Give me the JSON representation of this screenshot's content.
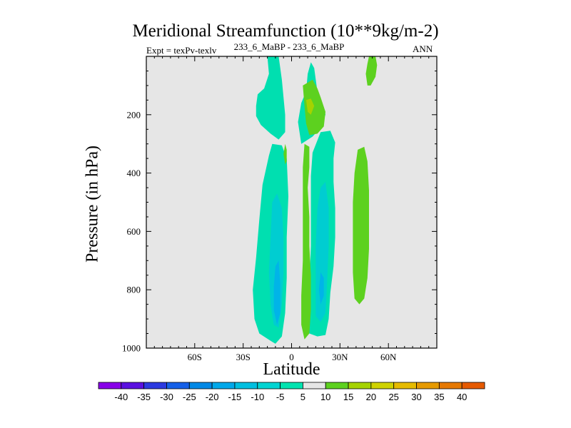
{
  "chart_data": {
    "type": "heatmap",
    "title": "Meridional Streamfunction (10**9kg/m-2)",
    "subtitle_left": "Expt = texPv-texlv",
    "subtitle_center": "233_6_MaBP - 233_6_MaBP",
    "subtitle_right": "ANN",
    "xlabel": "Latitude",
    "ylabel": "Pressure (in hPa)",
    "xlim": [
      -90,
      90
    ],
    "ylim": [
      1000,
      0
    ],
    "x_ticks": [
      {
        "value": -60,
        "label": "60S"
      },
      {
        "value": -30,
        "label": "30S"
      },
      {
        "value": 0,
        "label": "0"
      },
      {
        "value": 30,
        "label": "30N"
      },
      {
        "value": 60,
        "label": "60N"
      }
    ],
    "y_ticks": [
      {
        "value": 200,
        "label": "200"
      },
      {
        "value": 400,
        "label": "400"
      },
      {
        "value": 600,
        "label": "600"
      },
      {
        "value": 800,
        "label": "800"
      },
      {
        "value": 1000,
        "label": "1000"
      }
    ],
    "background_color": "#e6e6e6",
    "contour_regions": [
      {
        "level": "-10",
        "color": "#00dfb0",
        "points": [
          [
            -15,
            0
          ],
          [
            -8,
            0
          ],
          [
            -6,
            80
          ],
          [
            -4,
            200
          ],
          [
            -4,
            260
          ],
          [
            -8,
            285
          ],
          [
            -13,
            265
          ],
          [
            -19,
            235
          ],
          [
            -22,
            205
          ],
          [
            -22,
            170
          ],
          [
            -21,
            130
          ],
          [
            -17,
            110
          ],
          [
            -14,
            60
          ]
        ]
      },
      {
        "level": "-10",
        "color": "#00dfb0",
        "points": [
          [
            12,
            20
          ],
          [
            14,
            40
          ],
          [
            15,
            80
          ],
          [
            16,
            120
          ],
          [
            18,
            150
          ],
          [
            20,
            175
          ],
          [
            21,
            200
          ],
          [
            18,
            245
          ],
          [
            13,
            275
          ],
          [
            6,
            300
          ],
          [
            4,
            225
          ],
          [
            6,
            160
          ],
          [
            9,
            120
          ],
          [
            10,
            60
          ]
        ]
      },
      {
        "level": "-10",
        "color": "#00dfb0",
        "points": [
          [
            -12,
            300
          ],
          [
            -6,
            305
          ],
          [
            -3,
            350
          ],
          [
            -2,
            480
          ],
          [
            -3,
            620
          ],
          [
            -3,
            760
          ],
          [
            -4,
            880
          ],
          [
            -6,
            960
          ],
          [
            -10,
            985
          ],
          [
            -13,
            975
          ],
          [
            -20,
            950
          ],
          [
            -23,
            900
          ],
          [
            -24,
            800
          ],
          [
            -22,
            690
          ],
          [
            -20,
            560
          ],
          [
            -18,
            440
          ],
          [
            -14,
            340
          ]
        ]
      },
      {
        "level": "-10",
        "color": "#00dfb0",
        "points": [
          [
            18,
            260
          ],
          [
            24,
            255
          ],
          [
            27,
            295
          ],
          [
            26,
            350
          ],
          [
            26,
            430
          ],
          [
            27,
            520
          ],
          [
            27,
            620
          ],
          [
            26,
            720
          ],
          [
            24,
            810
          ],
          [
            23,
            900
          ],
          [
            21,
            955
          ],
          [
            16,
            960
          ],
          [
            11,
            950
          ],
          [
            10,
            880
          ],
          [
            11,
            780
          ],
          [
            12,
            650
          ],
          [
            12,
            520
          ],
          [
            12,
            410
          ],
          [
            13,
            330
          ]
        ]
      },
      {
        "level": "-15",
        "color": "#00cdd1",
        "points": [
          [
            -12,
            500
          ],
          [
            -9,
            470
          ],
          [
            -6,
            520
          ],
          [
            -5,
            620
          ],
          [
            -5,
            740
          ],
          [
            -6,
            850
          ],
          [
            -8,
            930
          ],
          [
            -11,
            920
          ],
          [
            -13,
            850
          ],
          [
            -14,
            740
          ],
          [
            -13,
            620
          ]
        ]
      },
      {
        "level": "-15",
        "color": "#00cdd1",
        "points": [
          [
            18,
            450
          ],
          [
            21,
            430
          ],
          [
            23,
            520
          ],
          [
            23,
            650
          ],
          [
            22,
            780
          ],
          [
            21,
            880
          ],
          [
            18,
            910
          ],
          [
            15,
            890
          ],
          [
            15,
            800
          ],
          [
            15,
            650
          ],
          [
            16,
            520
          ]
        ]
      },
      {
        "level": "-20",
        "color": "#00b4e8",
        "points": [
          [
            -10,
            720
          ],
          [
            -8,
            700
          ],
          [
            -7,
            780
          ],
          [
            -7,
            880
          ],
          [
            -9,
            920
          ],
          [
            -11,
            870
          ],
          [
            -11,
            790
          ]
        ]
      },
      {
        "level": "-20",
        "color": "#00b4e8",
        "points": [
          [
            18,
            740
          ],
          [
            20,
            760
          ],
          [
            20,
            820
          ],
          [
            18,
            850
          ],
          [
            17,
            800
          ]
        ]
      },
      {
        "level": "5",
        "color": "#5dd11f",
        "points": [
          [
            7,
            100
          ],
          [
            13,
            80
          ],
          [
            16,
            110
          ],
          [
            18,
            140
          ],
          [
            21,
            190
          ],
          [
            20,
            240
          ],
          [
            16,
            265
          ],
          [
            11,
            270
          ],
          [
            9,
            230
          ],
          [
            8,
            170
          ]
        ]
      },
      {
        "level": "10",
        "color": "#a5d300",
        "points": [
          [
            9,
            150
          ],
          [
            12,
            145
          ],
          [
            14,
            170
          ],
          [
            12,
            200
          ],
          [
            10,
            190
          ]
        ]
      },
      {
        "level": "5",
        "color": "#5dd11f",
        "points": [
          [
            8,
            300
          ],
          [
            11,
            310
          ],
          [
            11,
            380
          ],
          [
            10,
            450
          ],
          [
            11,
            550
          ],
          [
            11,
            650
          ],
          [
            12,
            750
          ],
          [
            12,
            870
          ],
          [
            11,
            950
          ],
          [
            8,
            970
          ],
          [
            6,
            920
          ],
          [
            6,
            820
          ],
          [
            7,
            700
          ],
          [
            7,
            580
          ],
          [
            7,
            470
          ],
          [
            7,
            380
          ]
        ]
      },
      {
        "level": "5",
        "color": "#5dd11f",
        "points": [
          [
            -4,
            300
          ],
          [
            -3,
            320
          ],
          [
            -3,
            360
          ],
          [
            -4,
            370
          ],
          [
            -5,
            335
          ]
        ]
      },
      {
        "level": "5",
        "color": "#5dd11f",
        "points": [
          [
            48,
            0
          ],
          [
            52,
            0
          ],
          [
            53,
            30
          ],
          [
            52,
            70
          ],
          [
            49,
            100
          ],
          [
            47,
            100
          ],
          [
            46,
            60
          ],
          [
            47,
            25
          ]
        ]
      },
      {
        "level": "5",
        "color": "#5dd11f",
        "points": [
          [
            41,
            320
          ],
          [
            45,
            310
          ],
          [
            47,
            360
          ],
          [
            48,
            460
          ],
          [
            48,
            560
          ],
          [
            48,
            660
          ],
          [
            47,
            760
          ],
          [
            45,
            830
          ],
          [
            42,
            850
          ],
          [
            39,
            830
          ],
          [
            38,
            740
          ],
          [
            38,
            620
          ],
          [
            38,
            500
          ],
          [
            39,
            400
          ]
        ]
      }
    ],
    "colorbar": {
      "levels": [
        "-40",
        "-35",
        "-30",
        "-25",
        "-20",
        "-15",
        "-10",
        "-5",
        "5",
        "10",
        "15",
        "20",
        "25",
        "30",
        "35",
        "40"
      ],
      "colors": [
        "#8800e8",
        "#5a10e0",
        "#2c3ae0",
        "#1560e8",
        "#0088e6",
        "#00a8ea",
        "#00bfe0",
        "#00d4d2",
        "#00e4b0",
        "#e6e6e6",
        "#5dd11f",
        "#a5d300",
        "#cfd300",
        "#e6bb00",
        "#e69a00",
        "#e67800",
        "#e65a00"
      ]
    }
  }
}
